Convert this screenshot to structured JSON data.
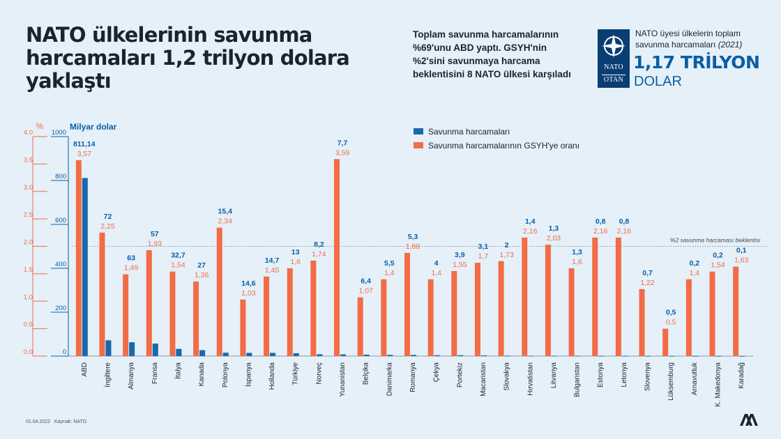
{
  "header": {
    "title": "NATO ülkelerinin savunma harcamaları 1,2 trilyon dolara yaklaştı",
    "intro": "Toplam savunma harcamalarının %69'unu ABD yaptı. GSYH'nin %2'sini savunmaya harcama beklentisini 8 NATO ülkesi karşıladı"
  },
  "nato_box": {
    "word_top": "NATO",
    "word_bottom": "OTAN"
  },
  "total": {
    "caption": "NATO üyesi ülkelerin toplam savunma harcamaları",
    "year": "(2021)",
    "value": "1,17 TRİLYON",
    "unit": "DOLAR"
  },
  "footer": {
    "date": "01.04.2022",
    "source": "Kaynak: NATO"
  },
  "colors": {
    "blue": "#1769aa",
    "orange": "#f26c45",
    "axis_blue": "#0a5ea3",
    "bg": "#e5f0f9"
  },
  "chart_data": {
    "type": "bar",
    "left_axis": {
      "label": "%",
      "min": 0,
      "max": 4.0,
      "ticks": [
        "0.0",
        "0.5",
        "1.0",
        "1.5",
        "2.0",
        "2.5",
        "3.0",
        "3.5",
        "4.0"
      ]
    },
    "right_axis": {
      "label": "Milyar dolar",
      "min": 0,
      "max": 1000,
      "ticks": [
        "0",
        "200",
        "400",
        "600",
        "800",
        "1000"
      ]
    },
    "reference_line": {
      "value": 2.0,
      "label": "%2 savunma harcaması beklentisi"
    },
    "categories": [
      "ABD",
      "İngiltere",
      "Almanya",
      "Fransa",
      "İtalya",
      "Kanada",
      "Polonya",
      "İspanya",
      "Hollanda",
      "Türkiye",
      "Norveç",
      "Yunanistan",
      "Belçika",
      "Danimarka",
      "Romanya",
      "Çekya",
      "Portekiz",
      "Macaristan",
      "Slovakya",
      "Hırvatistan",
      "Litvanya",
      "Bulgaristan",
      "Estonya",
      "Letonya",
      "Slovenya",
      "Lüksemburg",
      "Arnavutluk",
      "K. Makedonya",
      "Karadağ"
    ],
    "series": [
      {
        "name": "Savunma harcamaları",
        "axis": "right",
        "color": "#1769aa",
        "values": [
          811.14,
          72,
          63,
          57,
          32.7,
          27,
          15.4,
          14.6,
          14.7,
          13,
          8.2,
          7.7,
          6.4,
          5.5,
          5.3,
          4,
          3.9,
          3.1,
          2,
          1.4,
          1.3,
          1.3,
          0.8,
          0.8,
          0.7,
          0.5,
          0.2,
          0.2,
          0.1
        ],
        "labels": [
          "811,14",
          "72",
          "63",
          "57",
          "32,7",
          "27",
          "15,4",
          "14,6",
          "14,7",
          "13",
          "8,2",
          "7,7",
          "6,4",
          "5,5",
          "5,3",
          "4",
          "3,9",
          "3,1",
          "2",
          "1,4",
          "1,3",
          "1,3",
          "0,8",
          "0,8",
          "0,7",
          "0,5",
          "0,2",
          "0,2",
          "0,1"
        ]
      },
      {
        "name": "Savunma harcamalarının GSYH'ye oranı",
        "axis": "left",
        "color": "#f26c45",
        "values": [
          3.57,
          2.25,
          1.49,
          1.93,
          1.54,
          1.36,
          2.34,
          1.03,
          1.45,
          1.6,
          1.74,
          3.59,
          1.07,
          1.4,
          1.88,
          1.4,
          1.55,
          1.7,
          1.73,
          2.16,
          2.03,
          1.6,
          2.16,
          2.16,
          1.22,
          0.5,
          1.4,
          1.54,
          1.63
        ],
        "labels": [
          "3,57",
          "2,25",
          "1,49",
          "1,93",
          "1,54",
          "1,36",
          "2,34",
          "1,03",
          "1,45",
          "1,6",
          "1,74",
          "3,59",
          "1,07",
          "1,4",
          "1,88",
          "1,4",
          "1,55",
          "1,7",
          "1,73",
          "2,16",
          "2,03",
          "1,6",
          "2,16",
          "2,16",
          "1,22",
          "0,5",
          "1,4",
          "1,54",
          "1,63"
        ]
      }
    ]
  }
}
